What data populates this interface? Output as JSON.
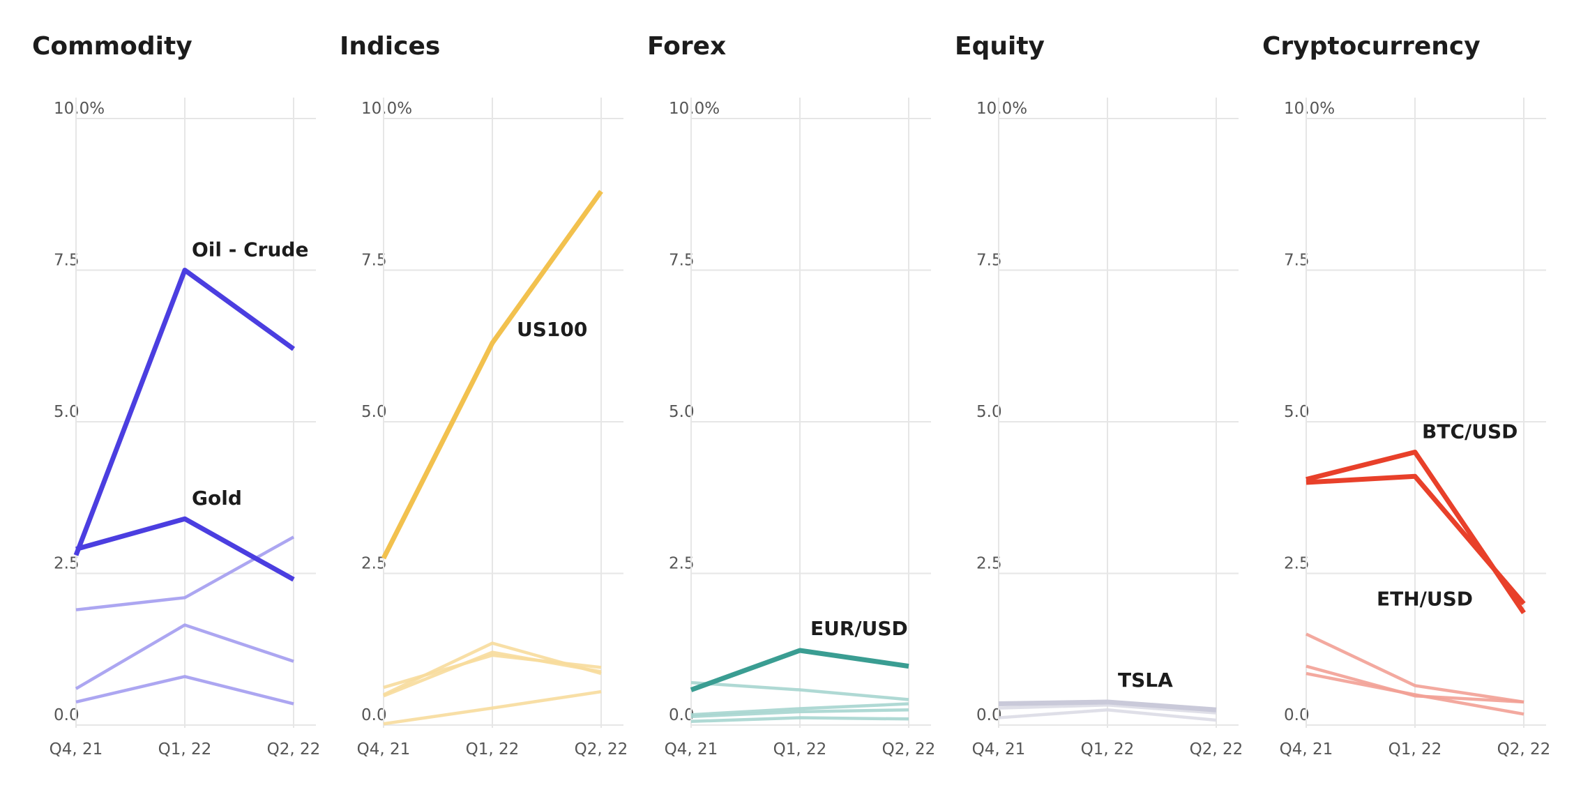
{
  "chart_data": [
    {
      "type": "line",
      "title": "Commodity",
      "categories": [
        "Q4, 21",
        "Q1, 22",
        "Q2, 22"
      ],
      "y_ticks": [
        "0.0",
        "2.5",
        "5.0",
        "7.5",
        "10.0%"
      ],
      "ylim": [
        0,
        10
      ],
      "grid": true,
      "color": "#4b3ee0",
      "faded_color": "#a39cf0",
      "series": [
        {
          "name": "Oil - Crude",
          "values": [
            2.8,
            7.5,
            6.2
          ],
          "highlight": true,
          "label_at": 1
        },
        {
          "name": "Gold",
          "values": [
            2.9,
            3.4,
            2.4
          ],
          "highlight": true,
          "label_at": 1
        },
        {
          "values": [
            1.9,
            2.1,
            3.1
          ],
          "highlight": false
        },
        {
          "values": [
            0.6,
            1.65,
            1.05
          ],
          "highlight": false
        },
        {
          "values": [
            0.38,
            0.8,
            0.35
          ],
          "highlight": false
        }
      ]
    },
    {
      "type": "line",
      "title": "Indices",
      "categories": [
        "Q4, 21",
        "Q1, 22",
        "Q2, 22"
      ],
      "y_ticks": [
        "0.0",
        "2.5",
        "5.0",
        "7.5",
        "10.0%"
      ],
      "ylim": [
        0,
        10
      ],
      "grid": true,
      "color": "#f2c14e",
      "faded_color": "#f7dc9c",
      "series": [
        {
          "name": "US100",
          "values": [
            2.75,
            6.3,
            8.8
          ],
          "highlight": true,
          "label_at": 1
        },
        {
          "values": [
            0.5,
            1.35,
            0.85
          ],
          "highlight": false
        },
        {
          "values": [
            0.62,
            1.15,
            0.95
          ],
          "highlight": false
        },
        {
          "values": [
            0.48,
            1.2,
            0.88
          ],
          "highlight": false
        },
        {
          "values": [
            0.02,
            0.28,
            0.55
          ],
          "highlight": false
        }
      ]
    },
    {
      "type": "line",
      "title": "Forex",
      "categories": [
        "Q4, 21",
        "Q1, 22",
        "Q2, 22"
      ],
      "y_ticks": [
        "0.0",
        "2.5",
        "5.0",
        "7.5",
        "10.0%"
      ],
      "ylim": [
        0,
        10
      ],
      "grid": true,
      "color": "#3a9d92",
      "faded_color": "#a6d5cf",
      "series": [
        {
          "name": "EUR/USD",
          "values": [
            0.58,
            1.23,
            0.97
          ],
          "highlight": true,
          "label_at": 1
        },
        {
          "values": [
            0.7,
            0.58,
            0.42
          ],
          "highlight": false
        },
        {
          "values": [
            0.17,
            0.27,
            0.35
          ],
          "highlight": false
        },
        {
          "values": [
            0.14,
            0.22,
            0.25
          ],
          "highlight": false
        },
        {
          "values": [
            0.06,
            0.12,
            0.1
          ],
          "highlight": false
        }
      ]
    },
    {
      "type": "line",
      "title": "Equity",
      "categories": [
        "Q4, 21",
        "Q1, 22",
        "Q2, 22"
      ],
      "y_ticks": [
        "0.0",
        "2.5",
        "5.0",
        "7.5",
        "10.0%"
      ],
      "ylim": [
        0,
        10
      ],
      "grid": true,
      "color": "#c9c9d9",
      "faded_color": "#dcdce6",
      "series": [
        {
          "name": "TSLA",
          "values": [
            0.35,
            0.38,
            0.25
          ],
          "highlight": true,
          "label_at": 1
        },
        {
          "values": [
            0.28,
            0.33,
            0.2
          ],
          "highlight": false
        },
        {
          "values": [
            0.12,
            0.25,
            0.08
          ],
          "highlight": false
        }
      ]
    },
    {
      "type": "line",
      "title": "Cryptocurrency",
      "categories": [
        "Q4, 21",
        "Q1, 22",
        "Q2, 22"
      ],
      "y_ticks": [
        "0.0",
        "2.5",
        "5.0",
        "7.5",
        "10.0%"
      ],
      "ylim": [
        0,
        10
      ],
      "grid": true,
      "color": "#e8402a",
      "faded_color": "#f2a095",
      "series": [
        {
          "name": "BTC/USD",
          "values": [
            4.05,
            4.5,
            1.85
          ],
          "highlight": true,
          "label_at": 1
        },
        {
          "name": "ETH/USD",
          "values": [
            4.0,
            4.1,
            2.0
          ],
          "highlight": true,
          "label_at": 1
        },
        {
          "values": [
            1.5,
            0.65,
            0.38
          ],
          "highlight": false
        },
        {
          "values": [
            0.97,
            0.48,
            0.38
          ],
          "highlight": false
        },
        {
          "values": [
            0.85,
            0.5,
            0.18
          ],
          "highlight": false
        }
      ]
    }
  ]
}
